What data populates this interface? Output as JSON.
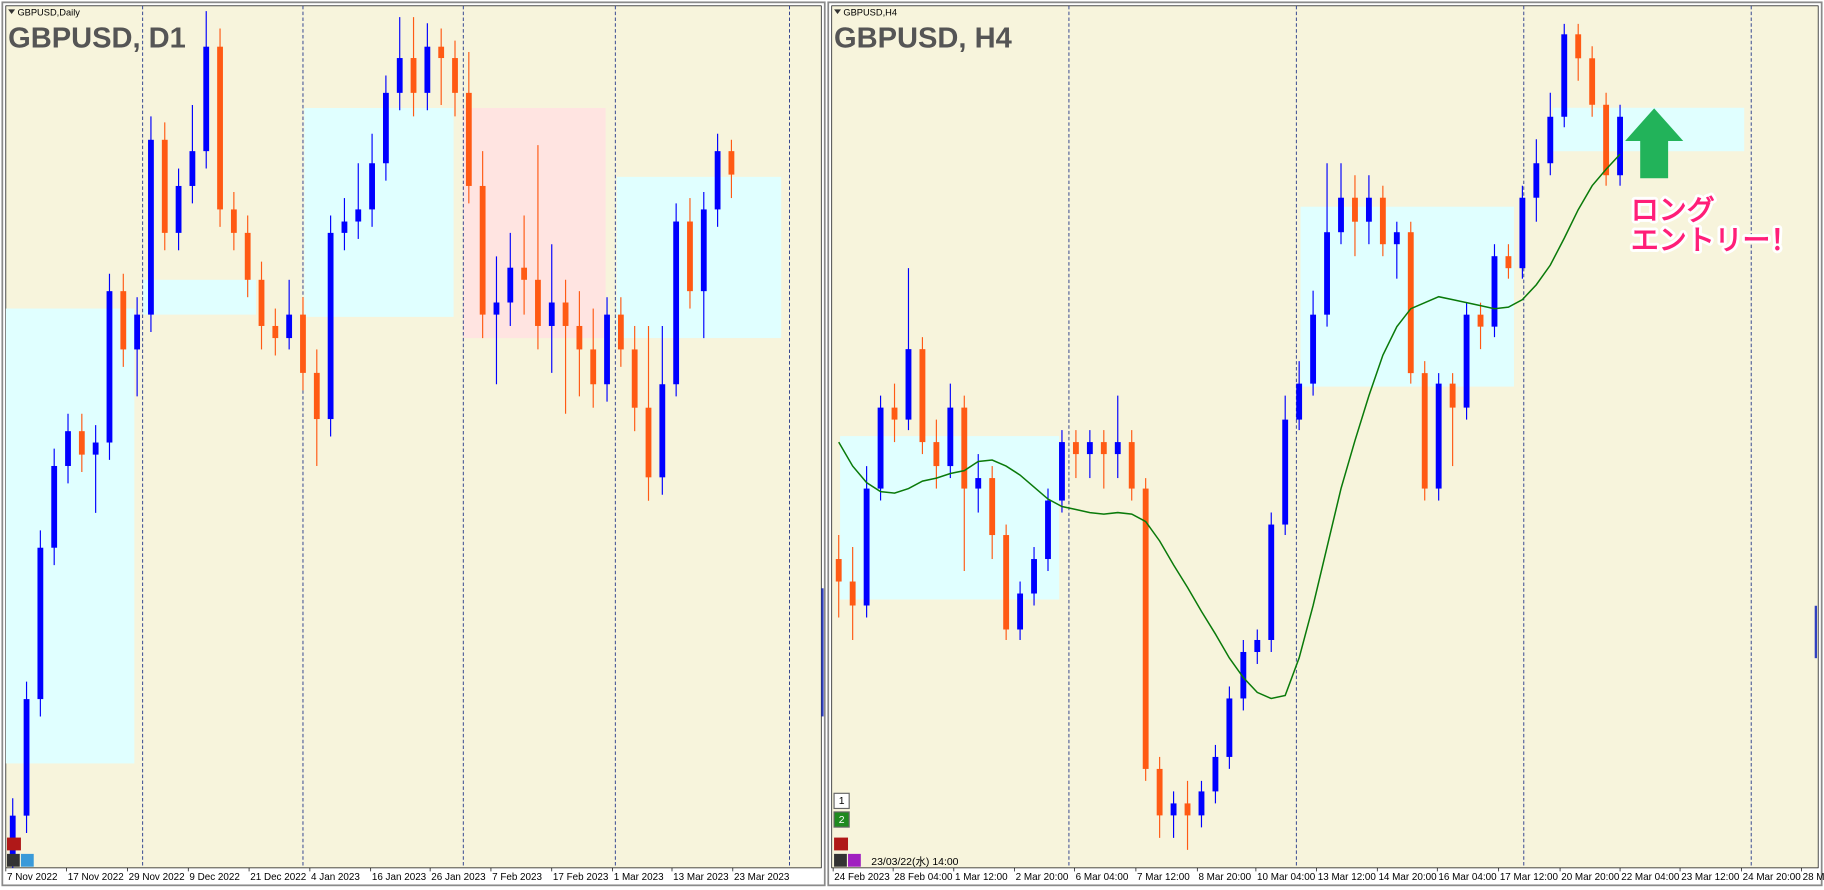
{
  "chart_data": [
    {
      "type": "candlestick",
      "label": "GBPUSD,Daily",
      "title": "GBPUSD, D1",
      "up_color": "#0000ff",
      "down_color": "#ff5a14",
      "background": "#f7f4dc",
      "xlim": [
        -0.5,
        58.5
      ],
      "ylim": [
        1.1313,
        1.2452
      ],
      "ohlc": [
        [
          1.132,
          1.1405,
          1.1313,
          1.1382
        ],
        [
          1.1382,
          1.1559,
          1.1359,
          1.1536
        ],
        [
          1.1536,
          1.1759,
          1.1513,
          1.1736
        ],
        [
          1.1736,
          1.1867,
          1.1713,
          1.1844
        ],
        [
          1.1844,
          1.1913,
          1.1821,
          1.189
        ],
        [
          1.189,
          1.1913,
          1.1836,
          1.1859
        ],
        [
          1.1859,
          1.1898,
          1.1782,
          1.1875
        ],
        [
          1.1875,
          1.2098,
          1.1852,
          1.2075
        ],
        [
          1.2075,
          1.2098,
          1.1975,
          1.1998
        ],
        [
          1.1998,
          1.2067,
          1.1936,
          1.2044
        ],
        [
          1.2044,
          1.2306,
          1.2021,
          1.2275
        ],
        [
          1.2275,
          1.2298,
          1.2129,
          1.2152
        ],
        [
          1.2152,
          1.2237,
          1.2129,
          1.2214
        ],
        [
          1.2214,
          1.2321,
          1.2191,
          1.226
        ],
        [
          1.226,
          1.2445,
          1.2237,
          1.2398
        ],
        [
          1.2398,
          1.2422,
          1.216,
          1.2183
        ],
        [
          1.2183,
          1.2206,
          1.2129,
          1.2152
        ],
        [
          1.2152,
          1.2175,
          1.2067,
          1.209
        ],
        [
          1.209,
          1.2114,
          1.1998,
          1.2029
        ],
        [
          1.2029,
          1.2052,
          1.199,
          1.2013
        ],
        [
          1.2013,
          1.209,
          1.1998,
          1.2044
        ],
        [
          1.2044,
          1.2067,
          1.1944,
          1.1967
        ],
        [
          1.1967,
          1.1998,
          1.1844,
          1.1906
        ],
        [
          1.1906,
          1.2175,
          1.1883,
          1.2152
        ],
        [
          1.2152,
          1.2198,
          1.2129,
          1.2167
        ],
        [
          1.2167,
          1.2244,
          1.2144,
          1.2183
        ],
        [
          1.2183,
          1.2283,
          1.216,
          1.2244
        ],
        [
          1.2244,
          1.236,
          1.2221,
          1.2337
        ],
        [
          1.2337,
          1.2437,
          1.2314,
          1.2383
        ],
        [
          1.2383,
          1.2437,
          1.2306,
          1.2337
        ],
        [
          1.2337,
          1.2429,
          1.2314,
          1.2398
        ],
        [
          1.2398,
          1.2422,
          1.2321,
          1.2383
        ],
        [
          1.2383,
          1.2406,
          1.2306,
          1.2337
        ],
        [
          1.2337,
          1.2391,
          1.2191,
          1.2214
        ],
        [
          1.2214,
          1.226,
          1.2013,
          1.2044
        ],
        [
          1.2044,
          1.2121,
          1.1952,
          1.206
        ],
        [
          1.206,
          1.2152,
          1.2029,
          1.2106
        ],
        [
          1.2106,
          1.2175,
          1.2044,
          1.209
        ],
        [
          1.209,
          1.2268,
          1.1998,
          1.2029
        ],
        [
          1.2029,
          1.2137,
          1.1967,
          1.206
        ],
        [
          1.206,
          1.209,
          1.1913,
          1.2029
        ],
        [
          1.2029,
          1.2075,
          1.1936,
          1.1998
        ],
        [
          1.1998,
          1.2052,
          1.1921,
          1.1952
        ],
        [
          1.1952,
          1.2067,
          1.1929,
          1.2044
        ],
        [
          1.2044,
          1.2067,
          1.1975,
          1.1998
        ],
        [
          1.1998,
          1.2029,
          1.189,
          1.1921
        ],
        [
          1.1921,
          1.2029,
          1.1798,
          1.1829
        ],
        [
          1.1829,
          1.2029,
          1.1806,
          1.1952
        ],
        [
          1.1952,
          1.2191,
          1.1936,
          1.2167
        ],
        [
          1.2167,
          1.2198,
          1.2052,
          1.2075
        ],
        [
          1.2075,
          1.2206,
          1.2013,
          1.2183
        ],
        [
          1.2183,
          1.2283,
          1.216,
          1.226
        ],
        [
          1.226,
          1.2275,
          1.2198,
          1.2229
        ]
      ],
      "xticks": [
        {
          "value": -0.5,
          "label": "7 Nov 2022"
        },
        {
          "value": 3.9,
          "label": "17 Nov 2022"
        },
        {
          "value": 8.3,
          "label": "29 Nov 2022"
        },
        {
          "value": 12.7,
          "label": "9 Dec 2022"
        },
        {
          "value": 17.1,
          "label": "21 Dec 2022"
        },
        {
          "value": 21.5,
          "label": "4 Jan 2023"
        },
        {
          "value": 25.9,
          "label": "16 Jan 2023"
        },
        {
          "value": 30.2,
          "label": "26 Jan 2023"
        },
        {
          "value": 34.6,
          "label": "7 Feb 2023"
        },
        {
          "value": 39.0,
          "label": "17 Feb 2023"
        },
        {
          "value": 43.4,
          "label": "1 Mar 2023"
        },
        {
          "value": 47.7,
          "label": "13 Mar 2023"
        },
        {
          "value": 52.1,
          "label": "23 Mar 2023"
        }
      ],
      "separators": [
        9.4,
        21.0,
        32.6,
        43.6,
        56.2
      ],
      "zones": [
        {
          "x": [
            -0.5,
            8.8
          ],
          "y": [
            1.1451,
            1.2052
          ],
          "color": "#e0ffff"
        },
        {
          "x": [
            9.4,
            17.6
          ],
          "y": [
            1.2044,
            1.209
          ],
          "color": "#e0ffff"
        },
        {
          "x": [
            21.1,
            31.9
          ],
          "y": [
            1.2041,
            1.2317
          ],
          "color": "#e0ffff"
        },
        {
          "x": [
            32.6,
            42.9
          ],
          "y": [
            1.2013,
            1.2317
          ],
          "color": "#ffe4e1"
        },
        {
          "x": [
            43.7,
            55.6
          ],
          "y": [
            1.2013,
            1.2226
          ],
          "color": "#e0ffff"
        }
      ]
    },
    {
      "type": "candlestick",
      "label": "GBPUSD,H4",
      "title": "GBPUSD, H4",
      "up_color": "#0000ff",
      "down_color": "#ff5a14",
      "background": "#f7f4dc",
      "xlim": [
        -0.5,
        70.2
      ],
      "ylim": [
        1.1776,
        1.2351
      ],
      "ohlc": [
        [
          1.1982,
          1.1998,
          1.1943,
          1.1967
        ],
        [
          1.1967,
          1.199,
          1.1928,
          1.1951
        ],
        [
          1.1951,
          1.2044,
          1.1943,
          1.2029
        ],
        [
          1.2029,
          1.2091,
          1.2021,
          1.2083
        ],
        [
          1.2083,
          1.2099,
          1.206,
          1.2075
        ],
        [
          1.2075,
          1.2176,
          1.2068,
          1.2122
        ],
        [
          1.2122,
          1.213,
          1.2052,
          1.206
        ],
        [
          1.206,
          1.2075,
          1.2029,
          1.2044
        ],
        [
          1.2044,
          1.2099,
          1.2036,
          1.2083
        ],
        [
          1.2083,
          1.2091,
          1.1974,
          1.2029
        ],
        [
          1.2029,
          1.2052,
          1.2013,
          1.2036
        ],
        [
          1.2036,
          1.2044,
          1.1982,
          1.1998
        ],
        [
          1.1998,
          1.2005,
          1.1928,
          1.1935
        ],
        [
          1.1935,
          1.1967,
          1.1928,
          1.1959
        ],
        [
          1.1959,
          1.199,
          1.1951,
          1.1982
        ],
        [
          1.1982,
          1.2029,
          1.1974,
          1.2021
        ],
        [
          1.2021,
          1.2068,
          1.2013,
          1.206
        ],
        [
          1.206,
          1.2068,
          1.2036,
          1.2052
        ],
        [
          1.2052,
          1.2068,
          1.2036,
          1.206
        ],
        [
          1.206,
          1.2068,
          1.2029,
          1.2052
        ],
        [
          1.2052,
          1.2091,
          1.2036,
          1.206
        ],
        [
          1.206,
          1.2068,
          1.2021,
          1.2029
        ],
        [
          1.2029,
          1.2036,
          1.1834,
          1.1842
        ],
        [
          1.1842,
          1.185,
          1.1796,
          1.1811
        ],
        [
          1.1811,
          1.1827,
          1.1796,
          1.1819
        ],
        [
          1.1819,
          1.1834,
          1.1788,
          1.1811
        ],
        [
          1.1811,
          1.1834,
          1.1803,
          1.1827
        ],
        [
          1.1827,
          1.1858,
          1.1819,
          1.185
        ],
        [
          1.185,
          1.1897,
          1.1842,
          1.1889
        ],
        [
          1.1889,
          1.1928,
          1.1881,
          1.192
        ],
        [
          1.192,
          1.1935,
          1.1912,
          1.1928
        ],
        [
          1.1928,
          1.2013,
          1.192,
          1.2005
        ],
        [
          1.2005,
          1.2091,
          1.1998,
          1.2075
        ],
        [
          1.2075,
          1.2114,
          1.2068,
          1.2099
        ],
        [
          1.2099,
          1.2161,
          1.2091,
          1.2145
        ],
        [
          1.2145,
          1.2246,
          1.2137,
          1.22
        ],
        [
          1.22,
          1.2246,
          1.2192,
          1.2223
        ],
        [
          1.2223,
          1.2238,
          1.2184,
          1.2207
        ],
        [
          1.2207,
          1.2238,
          1.2192,
          1.2223
        ],
        [
          1.2223,
          1.2231,
          1.2184,
          1.2192
        ],
        [
          1.2192,
          1.2207,
          1.2169,
          1.22
        ],
        [
          1.22,
          1.2207,
          1.2099,
          1.2106
        ],
        [
          1.2106,
          1.2114,
          1.2021,
          1.2029
        ],
        [
          1.2029,
          1.2106,
          1.2021,
          1.2099
        ],
        [
          1.2099,
          1.2106,
          1.2044,
          1.2083
        ],
        [
          1.2083,
          1.2153,
          1.2075,
          1.2145
        ],
        [
          1.2145,
          1.2153,
          1.2122,
          1.2137
        ],
        [
          1.2137,
          1.2192,
          1.213,
          1.2184
        ],
        [
          1.2184,
          1.2192,
          1.2169,
          1.2176
        ],
        [
          1.2176,
          1.2231,
          1.2169,
          1.2223
        ],
        [
          1.2223,
          1.2262,
          1.2207,
          1.2246
        ],
        [
          1.2246,
          1.2293,
          1.2238,
          1.2277
        ],
        [
          1.2277,
          1.2339,
          1.227,
          1.2332
        ],
        [
          1.2332,
          1.2339,
          1.2301,
          1.2316
        ],
        [
          1.2316,
          1.2324,
          1.2277,
          1.2285
        ],
        [
          1.2285,
          1.2293,
          1.2231,
          1.2238
        ],
        [
          1.2238,
          1.2285,
          1.2231,
          1.2277
        ]
      ],
      "ma": {
        "color": "#0a7a0a",
        "values": [
          1.206,
          1.2044,
          1.2033,
          1.2027,
          1.2026,
          1.2029,
          1.2034,
          1.2036,
          1.2039,
          1.2041,
          1.2047,
          1.2048,
          1.2044,
          1.2038,
          1.203,
          1.2022,
          1.2017,
          1.2015,
          1.2013,
          1.2012,
          1.2013,
          1.2012,
          1.2007,
          1.1994,
          1.1978,
          1.1963,
          1.1947,
          1.1932,
          1.1916,
          1.1903,
          1.1893,
          1.1889,
          1.1891,
          1.1916,
          1.1951,
          1.199,
          1.2029,
          1.2061,
          1.2091,
          1.2118,
          1.2137,
          1.2149,
          1.2153,
          1.2157,
          1.2155,
          1.2153,
          1.2151,
          1.2149,
          1.215,
          1.2155,
          1.2165,
          1.2178,
          1.2196,
          1.2215,
          1.2231,
          1.2242,
          1.2252
        ]
      },
      "xticks": [
        {
          "value": -0.4,
          "label": "24 Feb 2023"
        },
        {
          "value": 3.9,
          "label": "28 Feb 04:00"
        },
        {
          "value": 8.25,
          "label": "1 Mar 12:00"
        },
        {
          "value": 12.6,
          "label": "2 Mar 20:00"
        },
        {
          "value": 16.9,
          "label": "6 Mar 04:00"
        },
        {
          "value": 21.3,
          "label": "7 Mar 12:00"
        },
        {
          "value": 25.7,
          "label": "8 Mar 20:00"
        },
        {
          "value": 29.9,
          "label": "10 Mar 04:00"
        },
        {
          "value": 34.25,
          "label": "13 Mar 12:00"
        },
        {
          "value": 38.6,
          "label": "14 Mar 20:00"
        },
        {
          "value": 42.9,
          "label": "16 Mar 04:00"
        },
        {
          "value": 47.3,
          "label": "17 Mar 12:00"
        },
        {
          "value": 51.7,
          "label": "20 Mar 20:00"
        },
        {
          "value": 56.0,
          "label": "22 Mar 04:00"
        },
        {
          "value": 60.3,
          "label": "23 Mar 12:00"
        },
        {
          "value": 64.7,
          "label": "24 Mar 20:00"
        },
        {
          "value": 69.0,
          "label": "28 M"
        }
      ],
      "separators": [
        16.5,
        32.8,
        49.1,
        65.4
      ],
      "zones": [
        {
          "x": [
            0.1,
            15.8
          ],
          "y": [
            1.1955,
            1.2064
          ],
          "color": "#e0ffff"
        },
        {
          "x": [
            33.1,
            48.4
          ],
          "y": [
            1.2097,
            1.2217
          ],
          "color": "#e0ffff"
        },
        {
          "x": [
            51.2,
            64.9
          ],
          "y": [
            1.2254,
            1.2283
          ],
          "color": "#e0ffff"
        }
      ],
      "annotation": [
        "ロング",
        "エントリー！"
      ]
    }
  ],
  "toolbar": {
    "buttons": [
      "1",
      "2"
    ],
    "timestamp": "23/03/22(水) 14:00"
  }
}
